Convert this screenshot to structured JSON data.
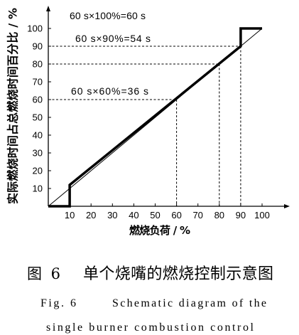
{
  "figure": {
    "caption_cn_label": "图 6",
    "caption_cn_text": "单个烧嘴的燃烧控制示意图",
    "caption_en_label": "Fig. 6",
    "caption_en_line1": "Schematic diagram of the",
    "caption_en_line2": "single burner combustion control"
  },
  "colors": {
    "ink": "#000000",
    "background": "#ffffff"
  },
  "chart_data": {
    "type": "line",
    "xlabel": "燃烧负荷 / %",
    "ylabel": "实际燃烧时间占总燃烧时间百分比 / %",
    "xlim": [
      0,
      100
    ],
    "ylim": [
      0,
      100
    ],
    "x_ticks": [
      10,
      20,
      30,
      40,
      50,
      60,
      70,
      80,
      90,
      100
    ],
    "y_ticks": [
      10,
      20,
      30,
      40,
      50,
      60,
      70,
      80,
      90,
      100
    ],
    "grid": false,
    "series": [
      {
        "x": [
          0,
          10,
          10,
          90,
          90,
          100
        ],
        "y": [
          0,
          0,
          12,
          90,
          100,
          100
        ]
      },
      {
        "x": [
          0,
          100
        ],
        "y": [
          0,
          100
        ]
      }
    ],
    "reference_points": [
      {
        "x": 60,
        "y": 60
      },
      {
        "x": 80,
        "y": 80
      },
      {
        "x": 90,
        "y": 90
      }
    ],
    "annotations": [
      "60 s×100%=60 s",
      "60 s×90%=54 s",
      "60 s×60%=36 s"
    ]
  }
}
